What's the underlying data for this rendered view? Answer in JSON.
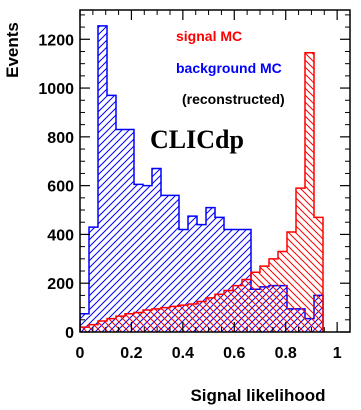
{
  "chart_data": {
    "type": "histogram",
    "xlabel": "Signal likelihood",
    "ylabel": "Events",
    "xlim": [
      0,
      1.05
    ],
    "ylim": [
      0,
      1320
    ],
    "x_ticks": [
      0,
      0.2,
      0.4,
      0.6,
      0.8,
      1
    ],
    "x_tick_labels": [
      "0",
      "0.2",
      "0.4",
      "0.6",
      "0.8",
      "1"
    ],
    "y_ticks": [
      0,
      200,
      400,
      600,
      800,
      1000,
      1200
    ],
    "y_tick_labels": [
      "0",
      "200",
      "400",
      "600",
      "800",
      "1000",
      "1200"
    ],
    "bin_edges": [
      0.0,
      0.035,
      0.07,
      0.105,
      0.14,
      0.175,
      0.21,
      0.245,
      0.28,
      0.315,
      0.35,
      0.385,
      0.42,
      0.455,
      0.49,
      0.525,
      0.56,
      0.595,
      0.63,
      0.665,
      0.7,
      0.735,
      0.77,
      0.805,
      0.84,
      0.875,
      0.91,
      0.945
    ],
    "series": [
      {
        "name": "background MC",
        "color": "#0000ff",
        "values": [
          75,
          430,
          1255,
          970,
          830,
          830,
          605,
          600,
          670,
          560,
          560,
          420,
          475,
          440,
          510,
          470,
          420,
          420,
          420,
          175,
          185,
          190,
          190,
          95,
          95,
          55,
          150
        ]
      },
      {
        "name": "signal MC",
        "color": "#ff0000",
        "values": [
          20,
          30,
          45,
          55,
          65,
          75,
          80,
          90,
          95,
          100,
          105,
          110,
          115,
          125,
          140,
          155,
          170,
          190,
          215,
          245,
          270,
          300,
          330,
          410,
          590,
          1145,
          470
        ]
      }
    ],
    "legend": {
      "entries": [
        {
          "label": "signal MC",
          "color": "#ff0000"
        },
        {
          "label": "background MC",
          "color": "#0000ff"
        }
      ],
      "note": "(reconstructed)",
      "placement": "top-right"
    },
    "watermark": "CLICdp"
  }
}
